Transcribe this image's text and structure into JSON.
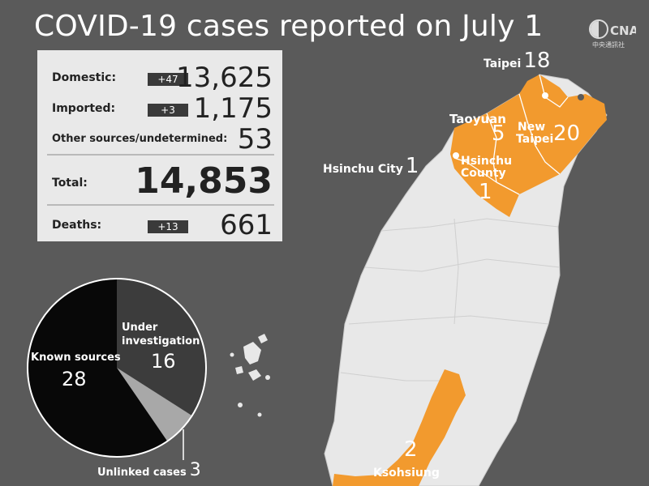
{
  "title": "COVID-19 cases reported on July 1",
  "logo": {
    "text": "CNA",
    "subtext": "中央通訊社"
  },
  "stats": {
    "domestic": {
      "label": "Domestic:",
      "change": "+47",
      "value": "13,625"
    },
    "imported": {
      "label": "Imported:",
      "change": "+3",
      "value": "1,175"
    },
    "other": {
      "label": "Other sources/undetermined:",
      "value": "53"
    },
    "total": {
      "label": "Total:",
      "value": "14,853"
    },
    "deaths": {
      "label": "Deaths:",
      "change": "+13",
      "value": "661"
    }
  },
  "chart_data": {
    "type": "pie",
    "slices": [
      {
        "label": "Under investigation",
        "value": 16,
        "color": "#3c3c3c"
      },
      {
        "label": "Unlinked cases",
        "value": 3,
        "color": "#a8a8a8"
      },
      {
        "label": "Known sources",
        "value": 28,
        "color": "#080808"
      }
    ],
    "labels": {
      "under": {
        "line1": "Under",
        "line2": "investigation",
        "value": "16"
      },
      "known": {
        "text": "Known sources",
        "value": "28"
      },
      "unlinked": {
        "text": "Unlinked cases",
        "value": "3"
      }
    }
  },
  "map": {
    "colors": {
      "land": "#e8e8e8",
      "highlight": "#f29a2e",
      "border": "#ffffff"
    },
    "cities": {
      "taipei": {
        "name": "Taipei",
        "value": "18"
      },
      "taoyuan": {
        "name": "Taoyuan",
        "value": "5"
      },
      "new_taipei_1": "New",
      "new_taipei_2": "Taipei",
      "new_taipei_value": "20",
      "hsinchu_city": {
        "name": "Hsinchu City",
        "value": "1"
      },
      "hsinchu_county_1": "Hsinchu",
      "hsinchu_county_2": "County",
      "hsinchu_county_value": "1",
      "kaohsiung": {
        "name": "Ksohsiung",
        "value": "2"
      }
    }
  }
}
